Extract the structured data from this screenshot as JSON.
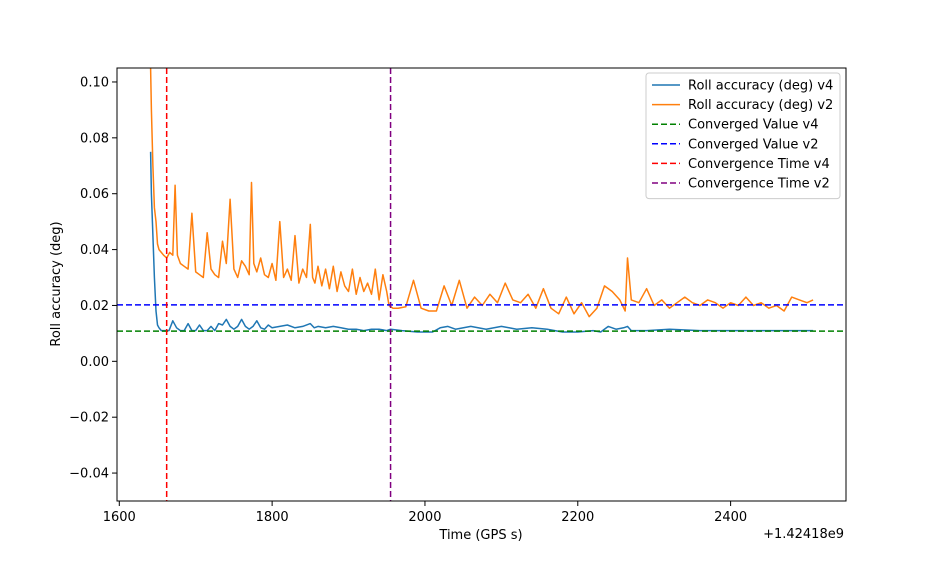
{
  "chart_data": {
    "type": "line",
    "title": "",
    "xlabel": "Time (GPS s)",
    "ylabel": "Roll accuracy (deg)",
    "x_offset_label": "+1.42418e9",
    "xlim": [
      1597,
      2551
    ],
    "ylim": [
      -0.05,
      0.105
    ],
    "xticks": [
      1600,
      1800,
      2000,
      2200,
      2400
    ],
    "yticks": [
      -0.04,
      -0.02,
      0.0,
      0.02,
      0.04,
      0.06,
      0.08,
      0.1
    ],
    "grid": false,
    "legend_position": "top-right",
    "series": [
      {
        "name": "Roll accuracy (deg) v4",
        "color": "#1f77b4",
        "style": "solid",
        "x": [
          1641,
          1642,
          1644,
          1646,
          1648,
          1650,
          1652,
          1655,
          1660,
          1665,
          1670,
          1675,
          1680,
          1685,
          1690,
          1695,
          1700,
          1705,
          1710,
          1715,
          1720,
          1725,
          1730,
          1735,
          1740,
          1745,
          1750,
          1755,
          1760,
          1765,
          1770,
          1775,
          1780,
          1785,
          1790,
          1795,
          1800,
          1810,
          1820,
          1830,
          1840,
          1850,
          1855,
          1860,
          1870,
          1880,
          1890,
          1900,
          1910,
          1920,
          1930,
          1940,
          1950,
          1955,
          1970,
          1990,
          2010,
          2020,
          2030,
          2040,
          2060,
          2080,
          2100,
          2110,
          2120,
          2140,
          2160,
          2180,
          2200,
          2220,
          2230,
          2240,
          2250,
          2260,
          2265,
          2270,
          2290,
          2320,
          2360,
          2400,
          2440,
          2480,
          2508
        ],
        "y": [
          0.075,
          0.06,
          0.045,
          0.03,
          0.018,
          0.013,
          0.012,
          0.011,
          0.011,
          0.011,
          0.0145,
          0.012,
          0.011,
          0.011,
          0.0135,
          0.011,
          0.011,
          0.013,
          0.011,
          0.011,
          0.0125,
          0.011,
          0.0135,
          0.013,
          0.015,
          0.0125,
          0.0115,
          0.0125,
          0.015,
          0.0125,
          0.0115,
          0.0125,
          0.0145,
          0.012,
          0.0115,
          0.013,
          0.012,
          0.0125,
          0.013,
          0.012,
          0.0125,
          0.0135,
          0.012,
          0.0125,
          0.012,
          0.0125,
          0.012,
          0.0115,
          0.0115,
          0.011,
          0.0115,
          0.0115,
          0.011,
          0.0115,
          0.011,
          0.0105,
          0.0105,
          0.012,
          0.0125,
          0.0115,
          0.0125,
          0.0115,
          0.0125,
          0.012,
          0.0115,
          0.012,
          0.0115,
          0.0105,
          0.0105,
          0.011,
          0.0105,
          0.0125,
          0.0115,
          0.012,
          0.0125,
          0.011,
          0.011,
          0.0115,
          0.011,
          0.011,
          0.011,
          0.011,
          0.011
        ]
      },
      {
        "name": "Roll accuracy (deg) v2",
        "color": "#ff7f0e",
        "style": "solid",
        "x": [
          1641,
          1642,
          1644,
          1646,
          1648,
          1650,
          1652,
          1655,
          1658,
          1662,
          1666,
          1670,
          1673,
          1676,
          1680,
          1685,
          1690,
          1695,
          1700,
          1705,
          1710,
          1715,
          1720,
          1725,
          1730,
          1735,
          1740,
          1745,
          1750,
          1755,
          1760,
          1765,
          1770,
          1773,
          1776,
          1780,
          1785,
          1790,
          1795,
          1800,
          1805,
          1810,
          1815,
          1820,
          1825,
          1830,
          1835,
          1840,
          1845,
          1850,
          1853,
          1856,
          1860,
          1865,
          1870,
          1875,
          1880,
          1885,
          1890,
          1895,
          1900,
          1905,
          1910,
          1915,
          1920,
          1925,
          1930,
          1935,
          1940,
          1945,
          1950,
          1953,
          1958,
          1965,
          1975,
          1985,
          1995,
          2005,
          2015,
          2025,
          2035,
          2045,
          2055,
          2065,
          2075,
          2085,
          2095,
          2105,
          2115,
          2125,
          2135,
          2145,
          2155,
          2165,
          2175,
          2185,
          2195,
          2205,
          2215,
          2225,
          2235,
          2245,
          2255,
          2262,
          2265,
          2270,
          2280,
          2290,
          2300,
          2310,
          2320,
          2330,
          2340,
          2350,
          2360,
          2370,
          2380,
          2390,
          2400,
          2410,
          2420,
          2430,
          2440,
          2450,
          2460,
          2470,
          2480,
          2490,
          2500,
          2508
        ],
        "y": [
          0.105,
          0.09,
          0.07,
          0.055,
          0.05,
          0.042,
          0.04,
          0.039,
          0.038,
          0.037,
          0.039,
          0.038,
          0.063,
          0.038,
          0.035,
          0.034,
          0.033,
          0.053,
          0.032,
          0.031,
          0.03,
          0.046,
          0.033,
          0.031,
          0.03,
          0.043,
          0.035,
          0.058,
          0.033,
          0.03,
          0.036,
          0.034,
          0.031,
          0.064,
          0.035,
          0.032,
          0.037,
          0.031,
          0.03,
          0.035,
          0.029,
          0.05,
          0.03,
          0.033,
          0.029,
          0.045,
          0.028,
          0.033,
          0.03,
          0.049,
          0.03,
          0.028,
          0.034,
          0.027,
          0.033,
          0.026,
          0.034,
          0.025,
          0.032,
          0.027,
          0.025,
          0.033,
          0.024,
          0.03,
          0.025,
          0.028,
          0.024,
          0.033,
          0.022,
          0.031,
          0.025,
          0.02,
          0.019,
          0.019,
          0.0195,
          0.029,
          0.019,
          0.018,
          0.018,
          0.027,
          0.02,
          0.029,
          0.019,
          0.023,
          0.02,
          0.024,
          0.021,
          0.028,
          0.022,
          0.021,
          0.024,
          0.019,
          0.026,
          0.019,
          0.017,
          0.023,
          0.017,
          0.021,
          0.016,
          0.019,
          0.027,
          0.025,
          0.022,
          0.018,
          0.037,
          0.022,
          0.021,
          0.026,
          0.02,
          0.022,
          0.019,
          0.021,
          0.023,
          0.021,
          0.02,
          0.022,
          0.021,
          0.019,
          0.021,
          0.02,
          0.023,
          0.02,
          0.021,
          0.019,
          0.02,
          0.018,
          0.023,
          0.022,
          0.021,
          0.022
        ]
      },
      {
        "name": "Converged Value v4",
        "color": "#008000",
        "style": "dashed",
        "hline": 0.0108
      },
      {
        "name": "Converged Value v2",
        "color": "#0000ff",
        "style": "dashed",
        "hline": 0.0202
      },
      {
        "name": "Convergence Time v4",
        "color": "#ff0000",
        "style": "dashed",
        "vline": 1662
      },
      {
        "name": "Convergence Time v2",
        "color": "#800080",
        "style": "dashed",
        "vline": 1955
      }
    ]
  }
}
